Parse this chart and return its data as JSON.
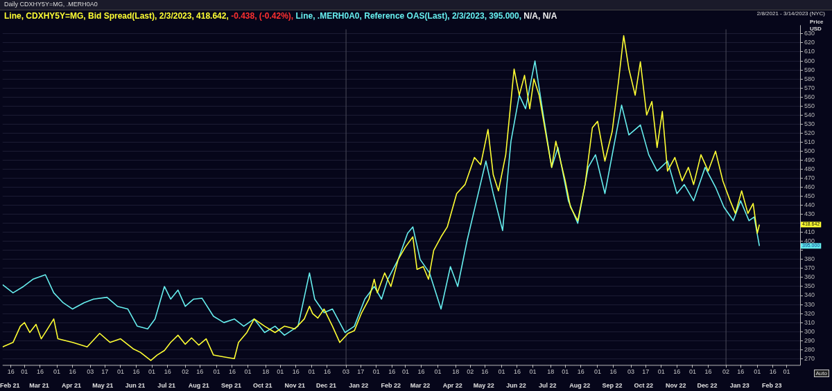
{
  "chart_data": {
    "type": "line",
    "title": "Daily CDXHY5Y=MG, .MERH0A0",
    "subtitle": "2/8/2021 - 3/14/2023 (NYC)",
    "ylabel": "Price USD",
    "legend": "top left",
    "grid": "y",
    "marker": "none",
    "line_style": "solid",
    "xlim": [
      "2021-02-08",
      "2023-03-14"
    ],
    "ylim": [
      263,
      635
    ],
    "yticks": [
      270,
      280,
      290,
      300,
      310,
      320,
      330,
      340,
      350,
      360,
      370,
      380,
      {
        "value": 390,
        "label": null
      },
      400,
      410,
      {
        "value": 420,
        "label": null
      },
      430,
      440,
      450,
      460,
      470,
      480,
      490,
      500,
      510,
      520,
      530,
      540,
      550,
      560,
      570,
      580,
      590,
      600,
      610,
      620,
      630
    ],
    "xticks": [
      {
        "value": "2021-02-16",
        "label": "16"
      },
      {
        "value": "2021-03-01",
        "label": "01"
      },
      {
        "value": "2021-03-16",
        "label": "16"
      },
      {
        "value": "2021-04-01",
        "label": "01"
      },
      {
        "value": "2021-04-16",
        "label": "16"
      },
      {
        "value": "2021-05-03",
        "label": "03"
      },
      {
        "value": "2021-05-17",
        "label": "17"
      },
      {
        "value": "2021-06-01",
        "label": "01"
      },
      {
        "value": "2021-06-16",
        "label": "16"
      },
      {
        "value": "2021-07-01",
        "label": "01"
      },
      {
        "value": "2021-07-16",
        "label": "16"
      },
      {
        "value": "2021-08-02",
        "label": "02"
      },
      {
        "value": "2021-08-16",
        "label": "16"
      },
      {
        "value": "2021-09-01",
        "label": "01"
      },
      {
        "value": "2021-09-16",
        "label": "16"
      },
      {
        "value": "2021-10-01",
        "label": "01"
      },
      {
        "value": "2021-10-18",
        "label": "18"
      },
      {
        "value": "2021-11-01",
        "label": "01"
      },
      {
        "value": "2021-11-16",
        "label": "16"
      },
      {
        "value": "2021-12-01",
        "label": "01"
      },
      {
        "value": "2021-12-16",
        "label": "16"
      },
      {
        "value": "2022-01-03",
        "label": "03"
      },
      {
        "value": "2022-01-17",
        "label": "17"
      },
      {
        "value": "2022-02-01",
        "label": "01"
      },
      {
        "value": "2022-02-16",
        "label": "16"
      },
      {
        "value": "2022-03-01",
        "label": "01"
      },
      {
        "value": "2022-03-16",
        "label": "16"
      },
      {
        "value": "2022-04-01",
        "label": "01"
      },
      {
        "value": "2022-04-18",
        "label": "18"
      },
      {
        "value": "2022-05-02",
        "label": "02"
      },
      {
        "value": "2022-05-16",
        "label": "16"
      },
      {
        "value": "2022-06-01",
        "label": "01"
      },
      {
        "value": "2022-06-16",
        "label": "16"
      },
      {
        "value": "2022-07-01",
        "label": "01"
      },
      {
        "value": "2022-07-18",
        "label": "18"
      },
      {
        "value": "2022-08-01",
        "label": "01"
      },
      {
        "value": "2022-08-16",
        "label": "16"
      },
      {
        "value": "2022-09-01",
        "label": "01"
      },
      {
        "value": "2022-09-16",
        "label": "16"
      },
      {
        "value": "2022-10-03",
        "label": "03"
      },
      {
        "value": "2022-10-17",
        "label": "17"
      },
      {
        "value": "2022-11-01",
        "label": "01"
      },
      {
        "value": "2022-11-16",
        "label": "16"
      },
      {
        "value": "2022-12-01",
        "label": "01"
      },
      {
        "value": "2022-12-16",
        "label": "16"
      },
      {
        "value": "2023-01-02",
        "label": "02"
      },
      {
        "value": "2023-01-16",
        "label": "16"
      },
      {
        "value": "2023-02-01",
        "label": "01"
      },
      {
        "value": "2023-02-16",
        "label": "16"
      },
      {
        "value": "2023-03-01",
        "label": "01"
      }
    ],
    "x2lim": [
      "2021-02-08",
      "2023-03-14"
    ],
    "x2ticks": [
      {
        "value": "2021-02-15",
        "label": "Feb 21"
      },
      {
        "value": "2021-03-15",
        "label": "Mar 21"
      },
      {
        "value": "2021-04-15",
        "label": "Apr 21"
      },
      {
        "value": "2021-05-15",
        "label": "May 21"
      },
      {
        "value": "2021-06-15",
        "label": "Jun 21"
      },
      {
        "value": "2021-07-15",
        "label": "Jul 21"
      },
      {
        "value": "2021-08-15",
        "label": "Aug 21"
      },
      {
        "value": "2021-09-15",
        "label": "Sep 21"
      },
      {
        "value": "2021-10-15",
        "label": "Oct 21"
      },
      {
        "value": "2021-11-15",
        "label": "Nov 21"
      },
      {
        "value": "2021-12-15",
        "label": "Dec 21"
      },
      {
        "value": "2022-01-15",
        "label": "Jan 22"
      },
      {
        "value": "2022-02-15",
        "label": "Feb 22"
      },
      {
        "value": "2022-03-15",
        "label": "Mar 22"
      },
      {
        "value": "2022-04-15",
        "label": "Apr 22"
      },
      {
        "value": "2022-05-15",
        "label": "May 22"
      },
      {
        "value": "2022-06-15",
        "label": "Jun 22"
      },
      {
        "value": "2022-07-15",
        "label": "Jul 22"
      },
      {
        "value": "2022-08-15",
        "label": "Aug 22"
      },
      {
        "value": "2022-09-15",
        "label": "Sep 22"
      },
      {
        "value": "2022-10-15",
        "label": "Oct 22"
      },
      {
        "value": "2022-11-15",
        "label": "Nov 22"
      },
      {
        "value": "2022-12-15",
        "label": "Dec 22"
      },
      {
        "value": "2023-01-15",
        "label": "Jan 23"
      },
      {
        "value": "2023-02-15",
        "label": "Feb 23"
      }
    ],
    "ref_lines": [
      {
        "axis": "x",
        "value": "2022-01-03",
        "color": "#4a4a5a"
      },
      {
        "axis": "x",
        "value": "2023-01-02",
        "color": "#4a4a5a"
      }
    ],
    "annotations": [
      "-0.438, (-0.42%),",
      "N/A, N/A",
      "Auto",
      "418.642",
      "395.000"
    ],
    "series": [
      {
        "name": "Line, CDXHY5Y=MG, Bid Spread(Last), 2/3/2023, 418.642,",
        "color": "#ffff33",
        "x": [
          "2021-02-08",
          "2021-02-18",
          "2021-02-25",
          "2021-03-01",
          "2021-03-06",
          "2021-03-12",
          "2021-03-17",
          "2021-03-22",
          "2021-03-29",
          "2021-04-02",
          "2021-04-16",
          "2021-04-30",
          "2021-05-12",
          "2021-05-22",
          "2021-06-01",
          "2021-06-13",
          "2021-06-20",
          "2021-06-30",
          "2021-07-06",
          "2021-07-13",
          "2021-07-19",
          "2021-07-26",
          "2021-08-02",
          "2021-08-08",
          "2021-08-15",
          "2021-08-22",
          "2021-08-29",
          "2021-09-08",
          "2021-09-18",
          "2021-09-22",
          "2021-09-30",
          "2021-10-07",
          "2021-10-17",
          "2021-10-27",
          "2021-11-05",
          "2021-11-15",
          "2021-11-24",
          "2021-11-29",
          "2021-12-02",
          "2021-12-07",
          "2021-12-13",
          "2021-12-21",
          "2021-12-28",
          "2022-01-05",
          "2022-01-11",
          "2022-01-18",
          "2022-01-25",
          "2022-01-30",
          "2022-02-02",
          "2022-02-09",
          "2022-02-15",
          "2022-02-22",
          "2022-03-01",
          "2022-03-08",
          "2022-03-12",
          "2022-03-18",
          "2022-03-23",
          "2022-03-28",
          "2022-04-04",
          "2022-04-10",
          "2022-04-19",
          "2022-04-27",
          "2022-05-06",
          "2022-05-12",
          "2022-05-19",
          "2022-05-24",
          "2022-05-29",
          "2022-06-05",
          "2022-06-13",
          "2022-06-18",
          "2022-06-23",
          "2022-06-28",
          "2022-07-02",
          "2022-07-07",
          "2022-07-13",
          "2022-07-19",
          "2022-07-23",
          "2022-08-01",
          "2022-08-06",
          "2022-08-13",
          "2022-08-20",
          "2022-08-27",
          "2022-09-01",
          "2022-09-08",
          "2022-09-15",
          "2022-09-21",
          "2022-09-26",
          "2022-10-01",
          "2022-10-07",
          "2022-10-12",
          "2022-10-18",
          "2022-10-23",
          "2022-10-28",
          "2022-11-02",
          "2022-11-07",
          "2022-11-14",
          "2022-11-21",
          "2022-11-27",
          "2022-12-02",
          "2022-12-09",
          "2022-12-16",
          "2022-12-23",
          "2022-12-30",
          "2023-01-06",
          "2023-01-11",
          "2023-01-17",
          "2023-01-23",
          "2023-01-28",
          "2023-02-01",
          "2023-02-03"
        ],
        "values": [
          283,
          288,
          306,
          310,
          299,
          308,
          292,
          301,
          314,
          292,
          288,
          283,
          298,
          288,
          292,
          281,
          277,
          268,
          274,
          279,
          288,
          296,
          286,
          293,
          285,
          292,
          274,
          272,
          270,
          288,
          299,
          314,
          306,
          299,
          306,
          303,
          314,
          328,
          320,
          315,
          325,
          306,
          288,
          298,
          301,
          321,
          336,
          358,
          343,
          365,
          350,
          380,
          394,
          405,
          369,
          372,
          358,
          390,
          405,
          416,
          453,
          463,
          493,
          485,
          524,
          474,
          456,
          496,
          591,
          562,
          584,
          547,
          580,
          562,
          522,
          482,
          511,
          467,
          438,
          423,
          463,
          526,
          533,
          489,
          522,
          577,
          628,
          591,
          562,
          599,
          540,
          555,
          504,
          544,
          478,
          493,
          467,
          482,
          463,
          496,
          478,
          500,
          467,
          445,
          431,
          456,
          431,
          442,
          409,
          418.642
        ]
      },
      {
        "name": "Line, .MERH0A0, Reference OAS(Last), 2/3/2023, 395.000,",
        "color": "#66eeee",
        "x": [
          "2021-02-08",
          "2021-02-18",
          "2021-02-28",
          "2021-03-09",
          "2021-03-21",
          "2021-03-29",
          "2021-04-07",
          "2021-04-16",
          "2021-04-27",
          "2021-05-06",
          "2021-05-19",
          "2021-05-29",
          "2021-06-08",
          "2021-06-17",
          "2021-06-27",
          "2021-07-04",
          "2021-07-13",
          "2021-07-19",
          "2021-07-26",
          "2021-08-02",
          "2021-08-10",
          "2021-08-18",
          "2021-08-29",
          "2021-09-08",
          "2021-09-18",
          "2021-09-27",
          "2021-10-07",
          "2021-10-17",
          "2021-10-27",
          "2021-11-05",
          "2021-11-18",
          "2021-11-29",
          "2021-12-04",
          "2021-12-13",
          "2021-12-21",
          "2022-01-02",
          "2022-01-11",
          "2022-01-21",
          "2022-01-30",
          "2022-02-06",
          "2022-02-12",
          "2022-02-22",
          "2022-03-03",
          "2022-03-08",
          "2022-03-15",
          "2022-03-24",
          "2022-04-04",
          "2022-04-13",
          "2022-04-20",
          "2022-04-29",
          "2022-05-08",
          "2022-05-17",
          "2022-05-24",
          "2022-06-02",
          "2022-06-10",
          "2022-06-18",
          "2022-06-24",
          "2022-07-03",
          "2022-07-11",
          "2022-07-19",
          "2022-07-25",
          "2022-08-04",
          "2022-08-13",
          "2022-08-23",
          "2022-08-30",
          "2022-09-08",
          "2022-09-15",
          "2022-09-24",
          "2022-10-01",
          "2022-10-12",
          "2022-10-20",
          "2022-10-28",
          "2022-11-07",
          "2022-11-16",
          "2022-11-23",
          "2022-12-02",
          "2022-12-13",
          "2022-12-23",
          "2022-12-31",
          "2023-01-09",
          "2023-01-16",
          "2023-01-24",
          "2023-01-29",
          "2023-02-03"
        ],
        "values": [
          352,
          343,
          350,
          358,
          363,
          343,
          332,
          325,
          332,
          336,
          338,
          328,
          325,
          306,
          303,
          314,
          350,
          336,
          346,
          328,
          336,
          337,
          317,
          310,
          314,
          306,
          314,
          299,
          306,
          296,
          306,
          365,
          336,
          321,
          325,
          299,
          306,
          336,
          350,
          336,
          358,
          380,
          409,
          416,
          380,
          365,
          325,
          372,
          350,
          401,
          445,
          489,
          453,
          412,
          511,
          562,
          547,
          600,
          540,
          482,
          504,
          445,
          420,
          482,
          496,
          453,
          496,
          551,
          518,
          529,
          496,
          478,
          489,
          453,
          463,
          445,
          482,
          460,
          438,
          423,
          445,
          423,
          427,
          395
        ]
      }
    ]
  }
}
